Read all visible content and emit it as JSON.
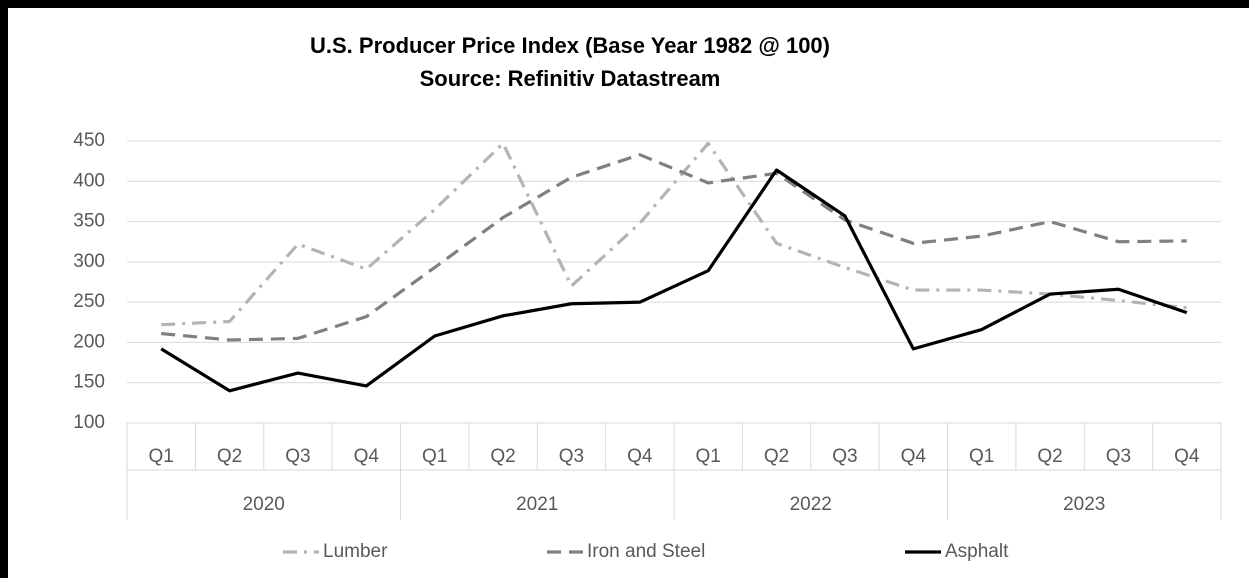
{
  "chart_data": {
    "type": "line",
    "title": "U.S. Producer Price Index (Base Year 1982 @ 100)",
    "subtitle": "Source: Refinitiv Datastream",
    "categories": [
      "Q1",
      "Q2",
      "Q3",
      "Q4",
      "Q1",
      "Q2",
      "Q3",
      "Q4",
      "Q1",
      "Q2",
      "Q3",
      "Q4",
      "Q1",
      "Q2",
      "Q3",
      "Q4"
    ],
    "category_groups": [
      "2020",
      "2021",
      "2022",
      "2023"
    ],
    "series": [
      {
        "name": "Lumber",
        "color": "#b4b4b4",
        "dash": "dashdot",
        "values": [
          222,
          226,
          322,
          291,
          365,
          447,
          270,
          348,
          447,
          323,
          293,
          265,
          265,
          260,
          252,
          243
        ]
      },
      {
        "name": "Iron and Steel",
        "color": "#808080",
        "dash": "dash",
        "values": [
          211,
          203,
          205,
          232,
          293,
          355,
          405,
          433,
          398,
          410,
          352,
          323,
          332,
          350,
          325,
          326
        ]
      },
      {
        "name": "Asphalt",
        "color": "#000000",
        "dash": "solid",
        "values": [
          192,
          140,
          162,
          146,
          208,
          233,
          248,
          250,
          289,
          414,
          357,
          192,
          216,
          260,
          266,
          237
        ]
      }
    ],
    "ylim": [
      100,
      450
    ],
    "yticks": [
      100,
      150,
      200,
      250,
      300,
      350,
      400,
      450
    ],
    "grid": true,
    "legend": "bottom"
  }
}
